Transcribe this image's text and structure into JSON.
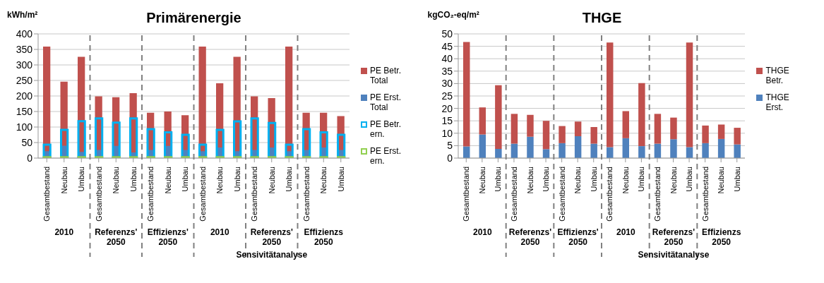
{
  "chart_data": [
    {
      "type": "bar",
      "title": "Primärenergie",
      "ylabel": "kWh/m²",
      "categories": [
        "Gesamtbestand",
        "Neubau",
        "Umbau",
        "Gesamtbestand",
        "Neubau",
        "Umbau",
        "Gesamtbestand",
        "Neubau",
        "Umbau",
        "Gesamtbestand",
        "Neubau",
        "Umbau",
        "Gesamtbestand",
        "Neubau",
        "Umbau",
        "Gesamtbestand",
        "Neubau",
        "Umbau"
      ],
      "series": [
        {
          "name": "PE Betr. Total",
          "color": "#c0504d",
          "values": [
            359,
            246,
            326,
            199,
            196,
            209,
            146,
            150,
            138,
            359,
            241,
            326,
            199,
            193,
            359,
            146,
            146,
            135
          ]
        },
        {
          "name": "PE Erst. Total",
          "color": "#4f81bd",
          "values": [
            22,
            40,
            20,
            26,
            39,
            18,
            26,
            39,
            26,
            22,
            34,
            22,
            26,
            34,
            22,
            26,
            34,
            26
          ]
        },
        {
          "name": "PE Betr. ern.",
          "color": "#00b0f0",
          "values": [
            43,
            91,
            119,
            128,
            114,
            128,
            93,
            83,
            75,
            43,
            91,
            118,
            128,
            113,
            43,
            93,
            83,
            75
          ]
        },
        {
          "name": "PE Erst. ern.",
          "color": "#92d050",
          "values": [
            3,
            3,
            3,
            3,
            3,
            3,
            3,
            3,
            3,
            3,
            3,
            3,
            3,
            3,
            3,
            3,
            3,
            3
          ]
        }
      ],
      "ylim": [
        0,
        400
      ],
      "yticks": [
        0,
        50,
        100,
        150,
        200,
        250,
        300,
        350,
        400
      ],
      "grid": "y",
      "legend": "right",
      "annotations": [
        "2010",
        "Referenzs'\n2050",
        "Effizienzs'\n2050",
        "2010",
        "Referenzs'\n2050",
        "Effizienzs\n2050",
        "Sensivitätanalyse"
      ]
    },
    {
      "type": "bar",
      "title": "THGE",
      "ylabel": "kgCO₂-eq/m²",
      "stacked": true,
      "categories": [
        "Gesamtbestand",
        "Neubau",
        "Umbau",
        "Gesamtbestand",
        "Neubau",
        "Umbau",
        "Gesamtbestand",
        "Neubau",
        "Umbau",
        "Gesamtbestand",
        "Neubau",
        "Umbau",
        "Gesamtbestand",
        "Neubau",
        "Umbau",
        "Gesamtbestand",
        "Neubau",
        "Umbau"
      ],
      "series": [
        {
          "name": "THGE Erst.",
          "color": "#4f81bd",
          "values": [
            4.7,
            9.5,
            3.7,
            5.8,
            8.6,
            3.6,
            6.0,
            8.8,
            5.8,
            4.4,
            8.0,
            4.8,
            5.8,
            7.6,
            4.4,
            6.0,
            7.7,
            5.5
          ]
        },
        {
          "name": "THGE Betr.",
          "color": "#c0504d",
          "values": [
            42.0,
            10.9,
            25.6,
            12.0,
            8.8,
            11.4,
            6.9,
            5.9,
            6.7,
            42.1,
            10.9,
            25.4,
            12.0,
            8.7,
            42.1,
            7.1,
            5.8,
            6.7
          ]
        }
      ],
      "ylim": [
        0,
        50
      ],
      "yticks": [
        0,
        5,
        10,
        15,
        20,
        25,
        30,
        35,
        40,
        45,
        50
      ],
      "grid": "y",
      "legend": "right",
      "annotations": [
        "2010",
        "Referenzs'\n2050",
        "Effizienzs'\n2050",
        "2010",
        "Referenzs'\n2050",
        "Effizienzs\n2050",
        "Sensivitätanalyse"
      ]
    }
  ]
}
